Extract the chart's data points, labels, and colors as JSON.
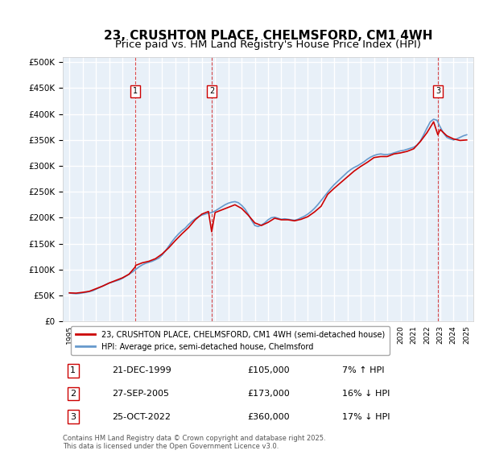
{
  "title": "23, CRUSHTON PLACE, CHELMSFORD, CM1 4WH",
  "subtitle": "Price paid vs. HM Land Registry's House Price Index (HPI)",
  "title_fontsize": 11,
  "subtitle_fontsize": 9.5,
  "background_color": "#ffffff",
  "plot_bg_color": "#e8f0f8",
  "grid_color": "#ffffff",
  "ylabel_ticks": [
    "£0",
    "£50K",
    "£100K",
    "£150K",
    "£200K",
    "£250K",
    "£300K",
    "£350K",
    "£400K",
    "£450K",
    "£500K"
  ],
  "ytick_values": [
    0,
    50000,
    100000,
    150000,
    200000,
    250000,
    300000,
    350000,
    400000,
    450000,
    500000
  ],
  "ylim": [
    0,
    510000
  ],
  "transactions": [
    {
      "num": 1,
      "date_num": 1999.97,
      "price": 105000,
      "label": "21-DEC-1999",
      "pct": "7%",
      "dir": "↑"
    },
    {
      "num": 2,
      "date_num": 2005.74,
      "price": 173000,
      "label": "27-SEP-2005",
      "pct": "16%",
      "dir": "↓"
    },
    {
      "num": 3,
      "date_num": 2022.82,
      "price": 360000,
      "label": "25-OCT-2022",
      "pct": "17%",
      "dir": "↓"
    }
  ],
  "legend_line1": "23, CRUSHTON PLACE, CHELMSFORD, CM1 4WH (semi-detached house)",
  "legend_line2": "HPI: Average price, semi-detached house, Chelmsford",
  "footer": "Contains HM Land Registry data © Crown copyright and database right 2025.\nThis data is licensed under the Open Government Licence v3.0.",
  "line_color_red": "#cc0000",
  "line_color_blue": "#6699cc",
  "hpi_series": {
    "dates": [
      1995.0,
      1995.25,
      1995.5,
      1995.75,
      1996.0,
      1996.25,
      1996.5,
      1996.75,
      1997.0,
      1997.25,
      1997.5,
      1997.75,
      1998.0,
      1998.25,
      1998.5,
      1998.75,
      1999.0,
      1999.25,
      1999.5,
      1999.75,
      2000.0,
      2000.25,
      2000.5,
      2000.75,
      2001.0,
      2001.25,
      2001.5,
      2001.75,
      2002.0,
      2002.25,
      2002.5,
      2002.75,
      2003.0,
      2003.25,
      2003.5,
      2003.75,
      2004.0,
      2004.25,
      2004.5,
      2004.75,
      2005.0,
      2005.25,
      2005.5,
      2005.75,
      2006.0,
      2006.25,
      2006.5,
      2006.75,
      2007.0,
      2007.25,
      2007.5,
      2007.75,
      2008.0,
      2008.25,
      2008.5,
      2008.75,
      2009.0,
      2009.25,
      2009.5,
      2009.75,
      2010.0,
      2010.25,
      2010.5,
      2010.75,
      2011.0,
      2011.25,
      2011.5,
      2011.75,
      2012.0,
      2012.25,
      2012.5,
      2012.75,
      2013.0,
      2013.25,
      2013.5,
      2013.75,
      2014.0,
      2014.25,
      2014.5,
      2014.75,
      2015.0,
      2015.25,
      2015.5,
      2015.75,
      2016.0,
      2016.25,
      2016.5,
      2016.75,
      2017.0,
      2017.25,
      2017.5,
      2017.75,
      2018.0,
      2018.25,
      2018.5,
      2018.75,
      2019.0,
      2019.25,
      2019.5,
      2019.75,
      2020.0,
      2020.25,
      2020.5,
      2020.75,
      2021.0,
      2021.25,
      2021.5,
      2021.75,
      2022.0,
      2022.25,
      2022.5,
      2022.75,
      2023.0,
      2023.25,
      2023.5,
      2023.75,
      2024.0,
      2024.25,
      2024.5,
      2024.75,
      2025.0
    ],
    "values": [
      55000,
      54000,
      53500,
      54000,
      55000,
      56000,
      57500,
      59000,
      62000,
      65000,
      68000,
      71000,
      74000,
      76000,
      78000,
      80000,
      83000,
      87000,
      91000,
      95000,
      100000,
      105000,
      109000,
      112000,
      114000,
      116000,
      119000,
      122000,
      128000,
      136000,
      145000,
      154000,
      162000,
      169000,
      175000,
      180000,
      187000,
      193000,
      198000,
      202000,
      205000,
      207000,
      209000,
      210000,
      213000,
      217000,
      221000,
      225000,
      228000,
      230000,
      231000,
      229000,
      224000,
      217000,
      207000,
      195000,
      185000,
      183000,
      186000,
      190000,
      196000,
      200000,
      201000,
      199000,
      197000,
      198000,
      197000,
      196000,
      195000,
      197000,
      200000,
      203000,
      207000,
      212000,
      218000,
      225000,
      233000,
      241000,
      249000,
      257000,
      264000,
      270000,
      276000,
      282000,
      288000,
      293000,
      297000,
      300000,
      304000,
      308000,
      313000,
      317000,
      320000,
      322000,
      323000,
      322000,
      322000,
      323000,
      325000,
      327000,
      329000,
      330000,
      332000,
      334000,
      336000,
      340000,
      348000,
      360000,
      373000,
      385000,
      390000,
      388000,
      375000,
      363000,
      355000,
      352000,
      350000,
      352000,
      355000,
      358000,
      360000
    ]
  },
  "price_series": {
    "dates": [
      1995.0,
      1995.5,
      1996.0,
      1996.5,
      1997.0,
      1997.5,
      1998.0,
      1998.5,
      1999.0,
      1999.5,
      1999.97,
      2000.0,
      2000.5,
      2001.0,
      2001.5,
      2002.0,
      2002.5,
      2003.0,
      2003.5,
      2004.0,
      2004.5,
      2005.0,
      2005.5,
      2005.74,
      2006.0,
      2006.5,
      2007.0,
      2007.5,
      2008.0,
      2008.5,
      2009.0,
      2009.5,
      2010.0,
      2010.5,
      2011.0,
      2011.5,
      2012.0,
      2012.5,
      2013.0,
      2013.5,
      2014.0,
      2014.5,
      2015.0,
      2015.5,
      2016.0,
      2016.5,
      2017.0,
      2017.5,
      2018.0,
      2018.5,
      2019.0,
      2019.5,
      2020.0,
      2020.5,
      2021.0,
      2021.5,
      2022.0,
      2022.5,
      2022.82,
      2023.0,
      2023.5,
      2024.0,
      2024.5,
      2025.0
    ],
    "values": [
      55000,
      54500,
      56000,
      58000,
      63000,
      68000,
      74000,
      79000,
      84000,
      91000,
      105000,
      108000,
      113000,
      116000,
      121000,
      130000,
      142000,
      156000,
      169000,
      181000,
      196000,
      207000,
      212000,
      173000,
      210000,
      215000,
      220000,
      225000,
      218000,
      205000,
      190000,
      185000,
      191000,
      199000,
      196000,
      196000,
      194000,
      197000,
      202000,
      211000,
      222000,
      245000,
      257000,
      268000,
      279000,
      290000,
      299000,
      307000,
      316000,
      318000,
      318000,
      323000,
      325000,
      328000,
      333000,
      347000,
      364000,
      385000,
      360000,
      370000,
      358000,
      352000,
      349000,
      350000
    ]
  },
  "xlim": [
    1994.5,
    2025.5
  ],
  "xtick_years": [
    1995,
    1996,
    1997,
    1998,
    1999,
    2000,
    2001,
    2002,
    2003,
    2004,
    2005,
    2006,
    2007,
    2008,
    2009,
    2010,
    2011,
    2012,
    2013,
    2014,
    2015,
    2016,
    2017,
    2018,
    2019,
    2020,
    2021,
    2022,
    2023,
    2024,
    2025
  ]
}
